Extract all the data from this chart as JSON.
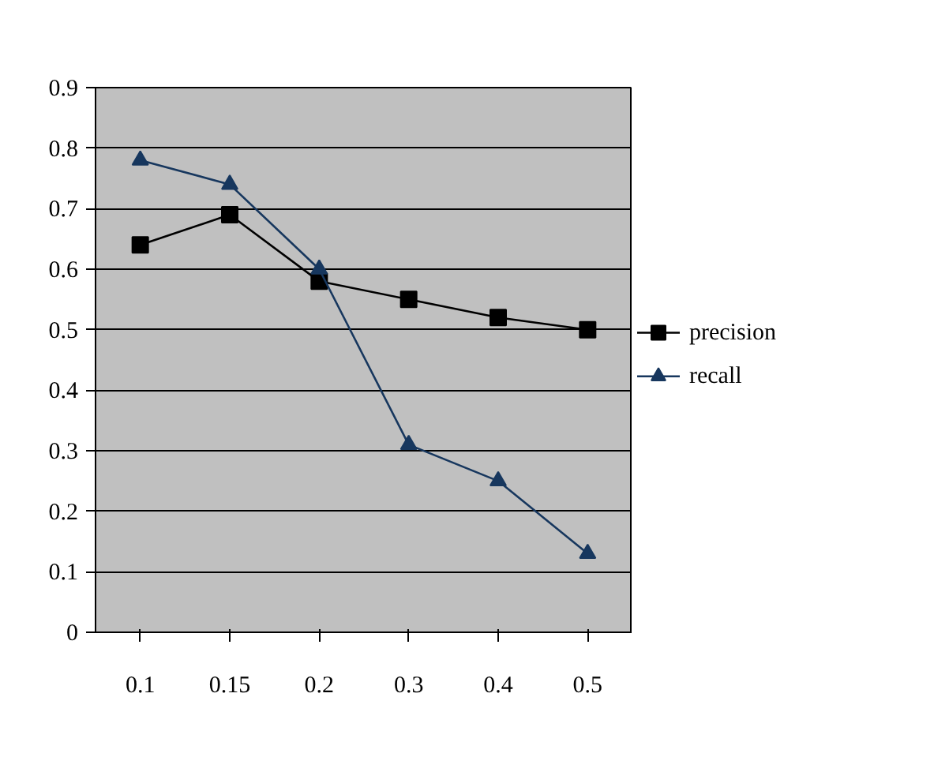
{
  "chart_data": {
    "type": "line",
    "categories": [
      "0.1",
      "0.15",
      "0.2",
      "0.3",
      "0.4",
      "0.5"
    ],
    "series": [
      {
        "name": "precision",
        "color": "#000000",
        "marker": "square",
        "values": [
          0.64,
          0.69,
          0.58,
          0.55,
          0.52,
          0.5
        ]
      },
      {
        "name": "recall",
        "color": "#17375e",
        "marker": "triangle",
        "values": [
          0.78,
          0.74,
          0.6,
          0.31,
          0.25,
          0.13
        ]
      }
    ],
    "ylim": [
      0,
      0.9
    ],
    "yticks": [
      0,
      0.1,
      0.2,
      0.3,
      0.4,
      0.5,
      0.6,
      0.7,
      0.8,
      0.9
    ],
    "grid": "y",
    "legend": "right",
    "line_style": "solid"
  }
}
